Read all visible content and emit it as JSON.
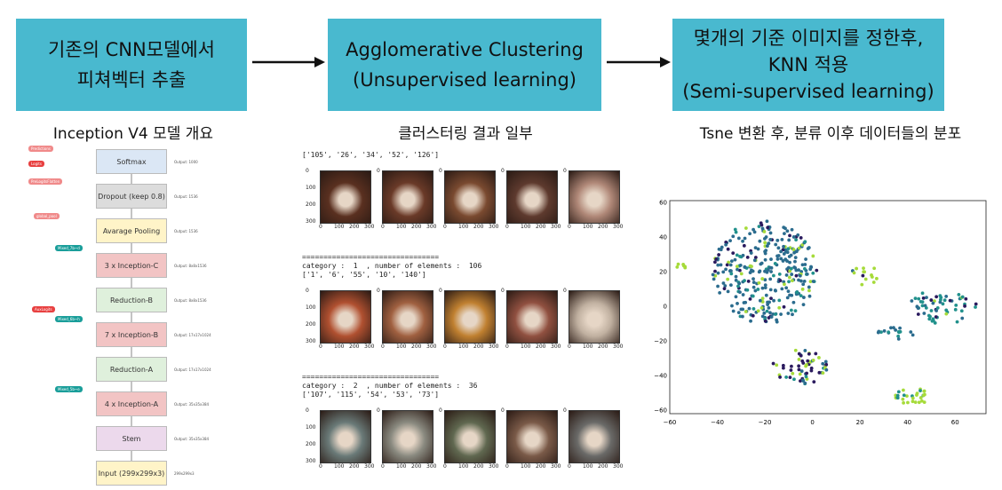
{
  "boxes": {
    "b1_l1": "기존의 CNN모델에서",
    "b1_l2": "피쳐벡터 추출",
    "b2_l1": "Agglomerative Clustering",
    "b2_l2": "(Unsupervised learning)",
    "b3_l1": "몇개의 기준 이미지를 정한후,",
    "b3_l2": "KNN 적용",
    "b3_l3": "(Semi-supervised learning)"
  },
  "captions": {
    "c1": "Inception V4 모델 개요",
    "c2": "클러스터링 결과 일부",
    "c3": "Tsne 변환 후, 분류 이후 데이터들의 분포"
  },
  "architecture": {
    "blocks": [
      {
        "label": "Softmax",
        "output": "Output: 1000",
        "color": "#dbe7f5"
      },
      {
        "label": "Dropout (keep 0.8)",
        "output": "Output: 1536",
        "color": "#dcdcdc"
      },
      {
        "label": "Avarage Pooling",
        "output": "Output: 1536",
        "color": "#fff4c8"
      },
      {
        "label": "3 x Inception-C",
        "output": "Output: 8x8x1536",
        "color": "#f2c4c4"
      },
      {
        "label": "Reduction-B",
        "output": "Output: 8x8x1536",
        "color": "#dff0dc"
      },
      {
        "label": "7 x Inception-B",
        "output": "Output: 17x17x1024",
        "color": "#f2c4c4"
      },
      {
        "label": "Reduction-A",
        "output": "Output: 17x17x1024",
        "color": "#dff0dc"
      },
      {
        "label": "4 x Inception-A",
        "output": "Output: 35x35x384",
        "color": "#f2c4c4"
      },
      {
        "label": "Stem",
        "output": "Output: 35x35x384",
        "color": "#ecd9ec"
      },
      {
        "label": "Input (299x299x3)",
        "output": "299x299x3",
        "color": "#fff4c8"
      }
    ],
    "pills": [
      {
        "label": "Predictions",
        "color": "#f08a8a"
      },
      {
        "label": "Logits",
        "color": "#e84040"
      },
      {
        "label": "PreLogitsFlatten",
        "color": "#f08a8a"
      },
      {
        "label": "global_pool",
        "color": "#f08a8a"
      },
      {
        "label": "Mixed_7b~d",
        "color": "#1a9e9a"
      },
      {
        "label": "AuxLogits",
        "color": "#e84040"
      },
      {
        "label": "Mixed_6b~h",
        "color": "#1a9e9a"
      },
      {
        "label": "Mixed_5b~e",
        "color": "#1a9e9a"
      }
    ]
  },
  "clusters": [
    {
      "header": "",
      "ids": "['105', '26', '34', '52', '126']",
      "colors": [
        "#5a3020",
        "#6a3a28",
        "#7a4a30",
        "#5e3a2e",
        "#b08878"
      ]
    },
    {
      "header": "category :  1  , number of elements :  106",
      "ids": "['1', '6', '55', '10', '140']",
      "colors": [
        "#b05030",
        "#a06040",
        "#c08030",
        "#905040",
        "#c0b0a0"
      ]
    },
    {
      "header": "category :  2  , number of elements :  36",
      "ids": "['107', '115', '54', '53', '73']",
      "colors": [
        "#6a7a78",
        "#8a8a80",
        "#606850",
        "#7a5a48",
        "#6a6a68"
      ]
    }
  ],
  "separator": "================================",
  "ticks_y": [
    "0",
    "100",
    "200",
    "300"
  ],
  "ticks_x": [
    "0",
    "100",
    "200",
    "300"
  ],
  "tsne": {
    "xticks": [
      "−60",
      "−40",
      "−20",
      "0",
      "20",
      "40",
      "60"
    ],
    "yticks": [
      "60",
      "40",
      "20",
      "0",
      "−20",
      "−40",
      "−60"
    ]
  },
  "chart_data": {
    "type": "scatter",
    "xlim": [
      -60,
      73
    ],
    "ylim": [
      -62,
      61
    ],
    "series_colors": [
      "#2b6c8e",
      "#2a1a5e",
      "#21918c",
      "#a6db3a"
    ],
    "grid": false
  }
}
